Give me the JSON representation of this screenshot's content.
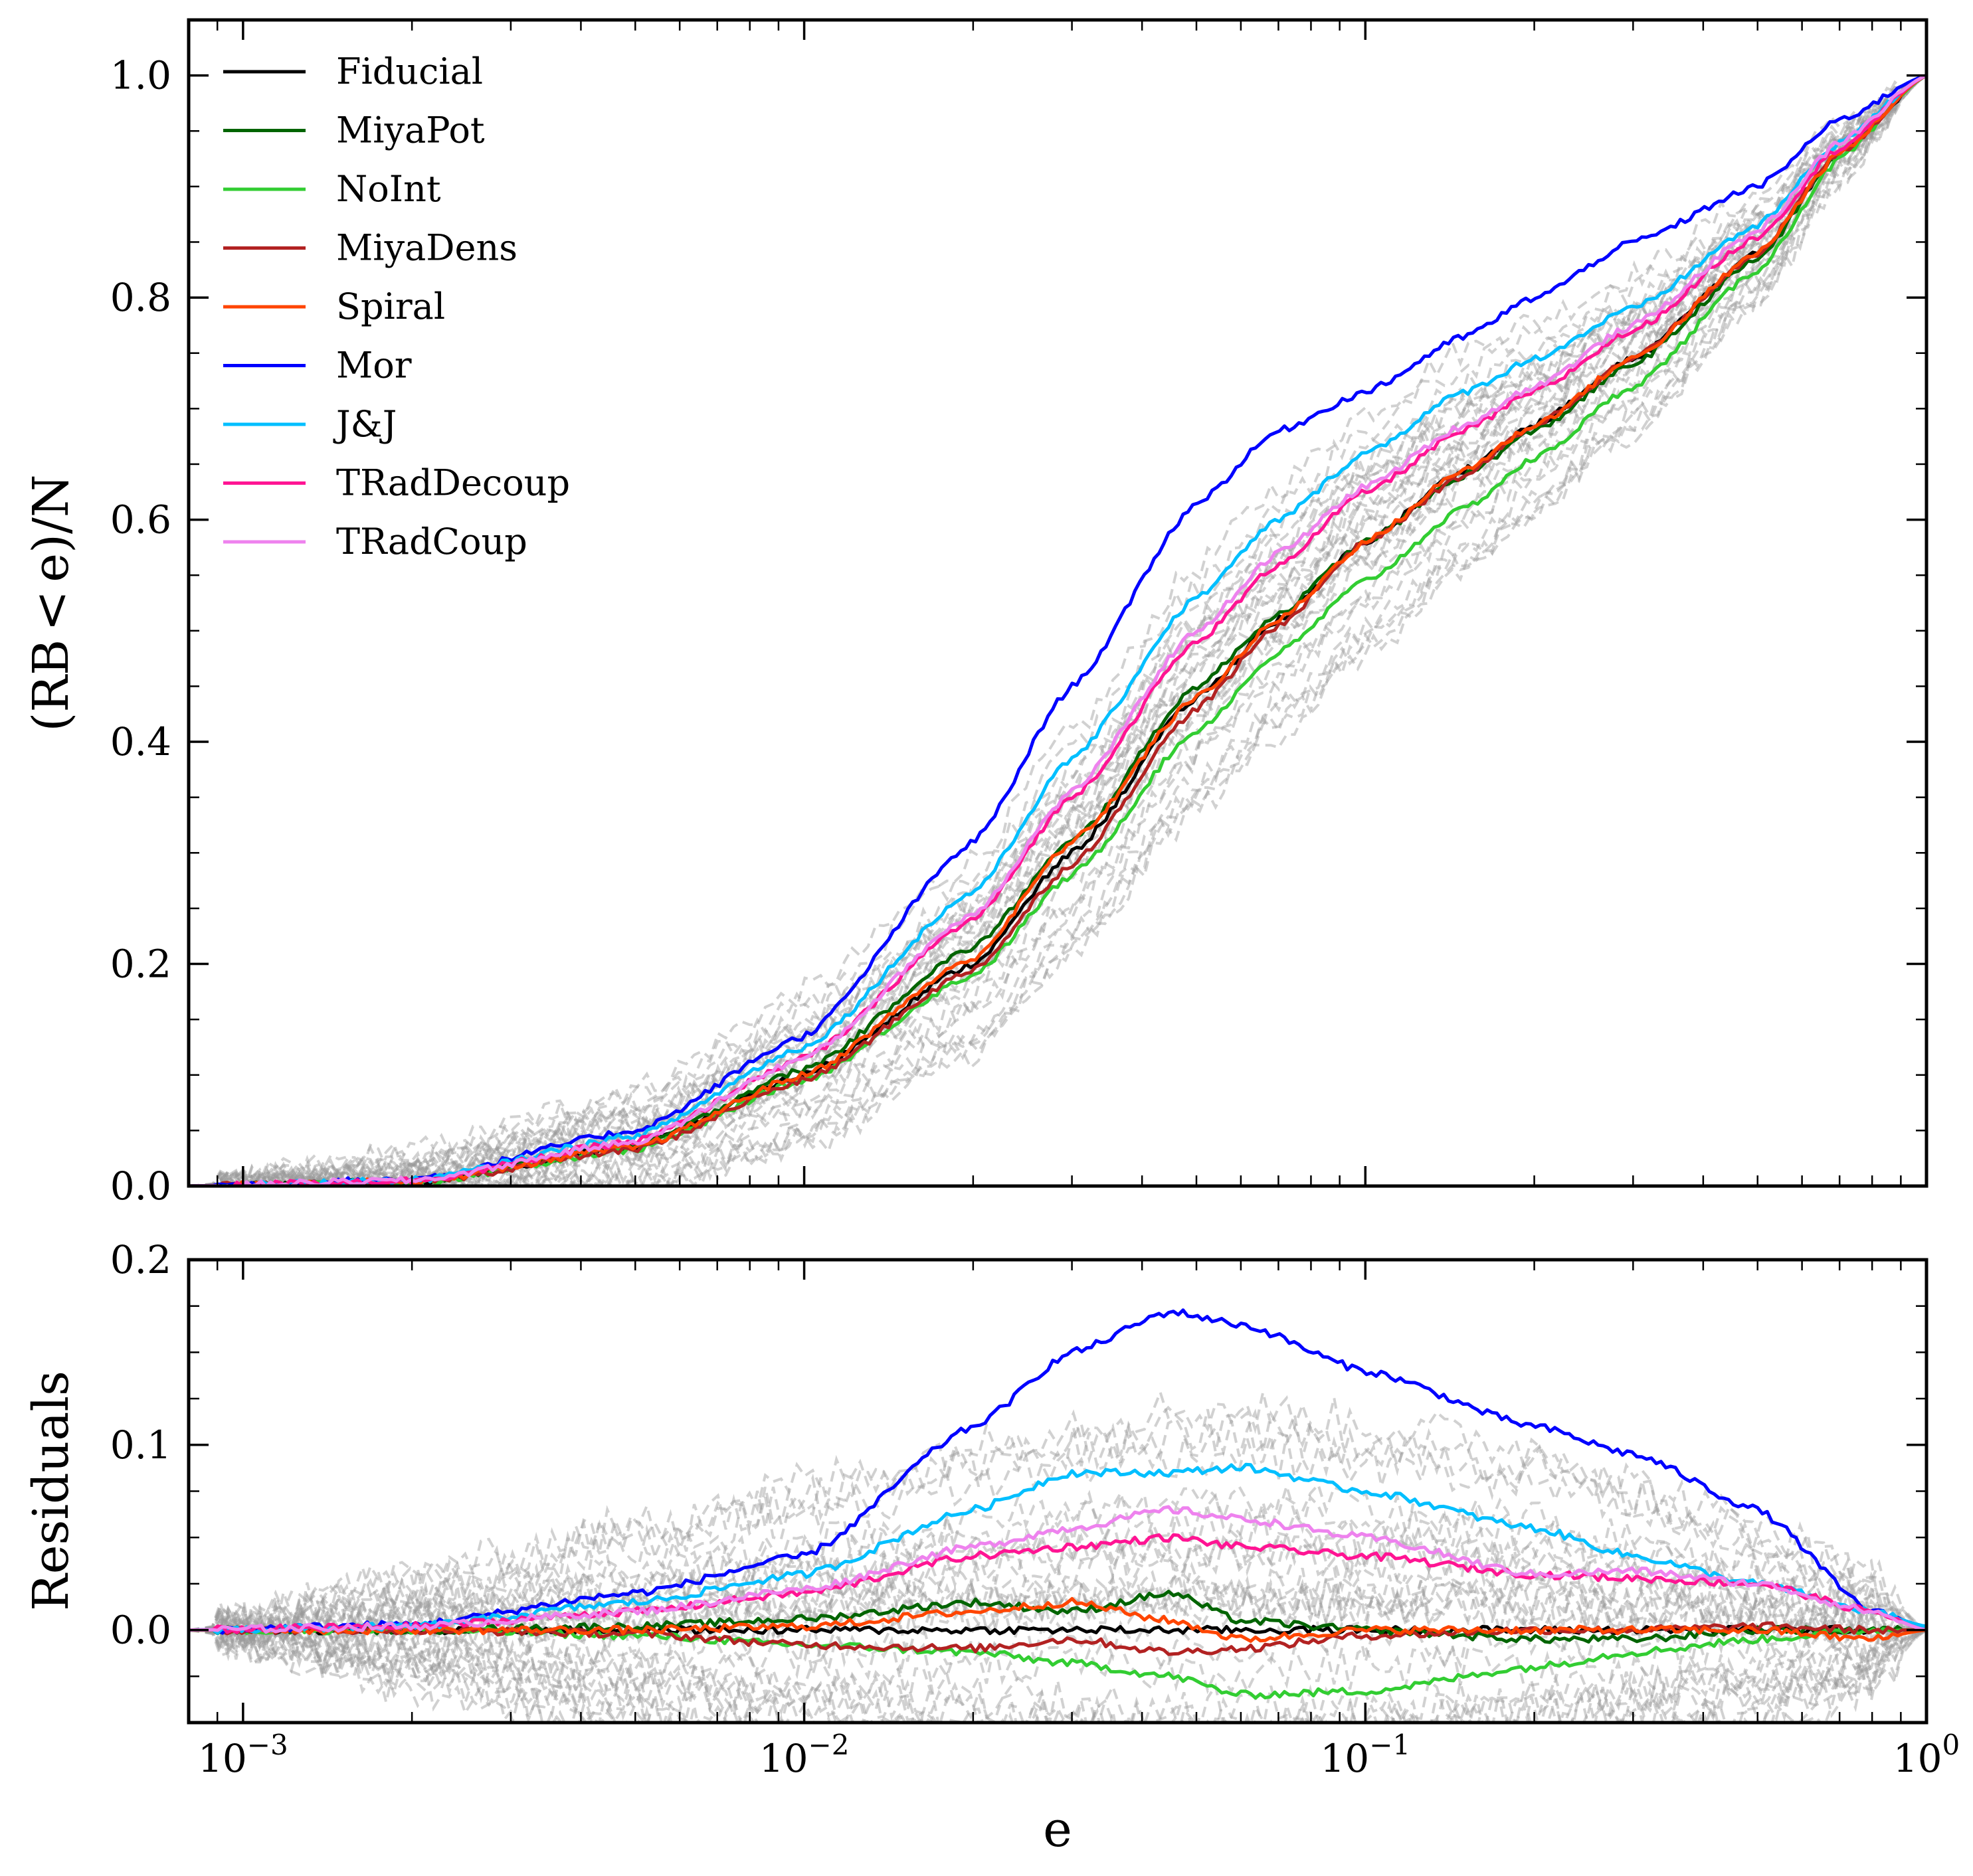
{
  "chart_data": [
    {
      "type": "line",
      "panel": "top",
      "xscale": "log",
      "xlim": [
        0.0008,
        1.0
      ],
      "ylim": [
        0.0,
        1.05
      ],
      "xlabel": "",
      "ylabel": "(RB < e)/N",
      "ylabel_parts": {
        "pre": "(RB",
        "op": "<",
        "post": "e)/N"
      },
      "yticks": [
        "0.0",
        "0.2",
        "0.4",
        "0.6",
        "0.8",
        "1.0"
      ],
      "grid": false,
      "legend_position": "top-left",
      "x": [
        0.0008,
        0.002,
        0.005,
        0.01,
        0.02,
        0.03,
        0.05,
        0.07,
        0.1,
        0.15,
        0.2,
        0.3,
        0.5,
        0.7,
        1.0
      ],
      "background_ensemble": {
        "label": "",
        "color": "#999999",
        "style": "dashed",
        "count": 30
      },
      "series": [
        {
          "name": "Fiducial",
          "color": "#000000",
          "values": [
            0,
            0.004,
            0.035,
            0.1,
            0.2,
            0.3,
            0.44,
            0.51,
            0.58,
            0.645,
            0.685,
            0.745,
            0.84,
            0.93,
            1.0
          ]
        },
        {
          "name": "MiyaPot",
          "color": "#006400",
          "values": [
            0,
            0.004,
            0.036,
            0.105,
            0.215,
            0.31,
            0.45,
            0.515,
            0.58,
            0.64,
            0.68,
            0.74,
            0.835,
            0.93,
            1.0
          ]
        },
        {
          "name": "NoInt",
          "color": "#32CD32",
          "values": [
            0,
            0.003,
            0.033,
            0.095,
            0.19,
            0.28,
            0.41,
            0.48,
            0.545,
            0.61,
            0.655,
            0.72,
            0.825,
            0.925,
            1.0
          ]
        },
        {
          "name": "MiyaDens",
          "color": "#B22222",
          "values": [
            0,
            0.003,
            0.033,
            0.095,
            0.195,
            0.29,
            0.43,
            0.505,
            0.58,
            0.64,
            0.685,
            0.745,
            0.84,
            0.93,
            1.0
          ]
        },
        {
          "name": "Spiral",
          "color": "#FF4500",
          "values": [
            0,
            0.004,
            0.035,
            0.1,
            0.205,
            0.31,
            0.44,
            0.51,
            0.58,
            0.645,
            0.685,
            0.745,
            0.84,
            0.93,
            1.0
          ]
        },
        {
          "name": "Mor",
          "color": "#0000FF",
          "values": [
            0,
            0.006,
            0.05,
            0.135,
            0.31,
            0.45,
            0.615,
            0.68,
            0.715,
            0.765,
            0.8,
            0.85,
            0.9,
            0.96,
            1.0
          ]
        },
        {
          "name": "J&J",
          "color": "#00BFFF",
          "values": [
            0,
            0.005,
            0.045,
            0.125,
            0.265,
            0.385,
            0.53,
            0.6,
            0.66,
            0.715,
            0.745,
            0.79,
            0.865,
            0.94,
            1.0
          ]
        },
        {
          "name": "TRadDecoup",
          "color": "#FF1493",
          "values": [
            0,
            0.005,
            0.04,
            0.115,
            0.24,
            0.35,
            0.49,
            0.56,
            0.625,
            0.68,
            0.715,
            0.77,
            0.855,
            0.935,
            1.0
          ]
        },
        {
          "name": "TRadCoup",
          "color": "#EE82EE",
          "values": [
            0,
            0.005,
            0.04,
            0.115,
            0.245,
            0.355,
            0.5,
            0.57,
            0.63,
            0.685,
            0.72,
            0.775,
            0.86,
            0.94,
            1.0
          ]
        }
      ]
    },
    {
      "type": "line",
      "panel": "bottom",
      "xscale": "log",
      "xlim": [
        0.0008,
        1.0
      ],
      "ylim": [
        -0.05,
        0.2
      ],
      "xlabel": "e",
      "ylabel": "Residuals",
      "yticks": [
        "0.0",
        "0.1",
        "0.2"
      ],
      "xticks": [
        {
          "base": "10",
          "exp": "−3"
        },
        {
          "base": "10",
          "exp": "−2"
        },
        {
          "base": "10",
          "exp": "−1"
        },
        {
          "base": "10",
          "exp": "0"
        }
      ],
      "grid": false,
      "x": [
        0.0008,
        0.002,
        0.005,
        0.01,
        0.02,
        0.03,
        0.045,
        0.06,
        0.1,
        0.2,
        0.3,
        0.5,
        0.8,
        1.0
      ],
      "background_ensemble": {
        "label": "",
        "color": "#999999",
        "style": "dashed",
        "count": 30
      },
      "series": [
        {
          "name": "Fiducial",
          "color": "#000000",
          "values": [
            0,
            0,
            0,
            0,
            0,
            0,
            0,
            0,
            0,
            0,
            0,
            0,
            0,
            0
          ]
        },
        {
          "name": "MiyaPot",
          "color": "#006400",
          "values": [
            0,
            0,
            0.002,
            0.006,
            0.015,
            0.01,
            0.02,
            0.005,
            0.0,
            -0.005,
            -0.005,
            0.0,
            0.0,
            0.0
          ]
        },
        {
          "name": "NoInt",
          "color": "#32CD32",
          "values": [
            0,
            0,
            -0.003,
            -0.008,
            -0.012,
            -0.018,
            -0.025,
            -0.035,
            -0.033,
            -0.02,
            -0.012,
            -0.005,
            0.0,
            0.0
          ]
        },
        {
          "name": "MiyaDens",
          "color": "#B22222",
          "values": [
            0,
            0,
            -0.002,
            -0.008,
            -0.01,
            -0.005,
            -0.012,
            -0.01,
            -0.003,
            0.0,
            0.0,
            0.002,
            0.0,
            0.0
          ]
        },
        {
          "name": "Spiral",
          "color": "#FF4500",
          "values": [
            0,
            0,
            0.0,
            0.002,
            0.01,
            0.015,
            0.005,
            -0.005,
            0.0,
            0.0,
            0.0,
            0.0,
            -0.005,
            0.0
          ]
        },
        {
          "name": "Mor",
          "color": "#0000FF",
          "values": [
            0,
            0.003,
            0.02,
            0.04,
            0.11,
            0.15,
            0.172,
            0.165,
            0.14,
            0.11,
            0.095,
            0.065,
            0.01,
            0.002
          ]
        },
        {
          "name": "J&J",
          "color": "#00BFFF",
          "values": [
            0,
            0.002,
            0.015,
            0.03,
            0.065,
            0.085,
            0.085,
            0.088,
            0.075,
            0.055,
            0.04,
            0.025,
            0.01,
            0.002
          ]
        },
        {
          "name": "TRadDecoup",
          "color": "#FF1493",
          "values": [
            0,
            0.002,
            0.01,
            0.02,
            0.04,
            0.045,
            0.05,
            0.045,
            0.04,
            0.03,
            0.028,
            0.025,
            0.01,
            0.0
          ]
        },
        {
          "name": "TRadCoup",
          "color": "#EE82EE",
          "values": [
            0,
            0.002,
            0.01,
            0.022,
            0.045,
            0.055,
            0.065,
            0.06,
            0.05,
            0.03,
            0.032,
            0.025,
            0.01,
            0.0
          ]
        }
      ]
    }
  ]
}
